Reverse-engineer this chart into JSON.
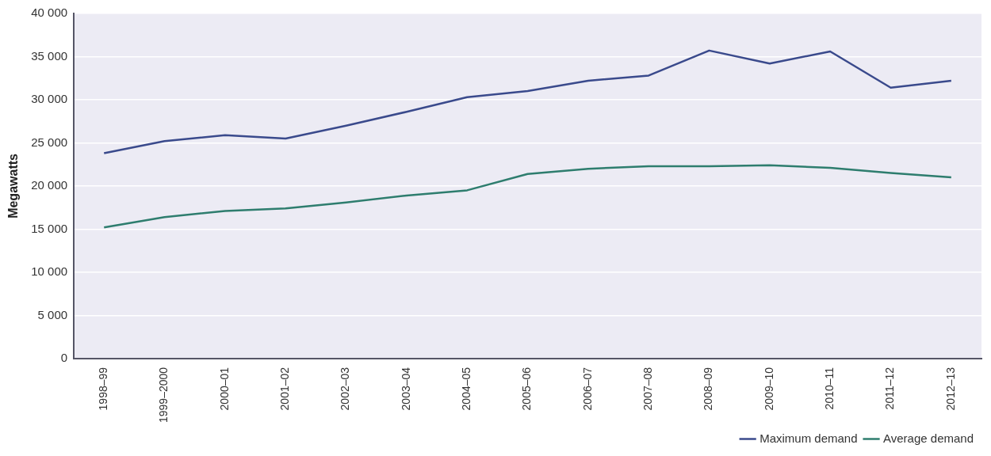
{
  "chart_data": {
    "type": "line",
    "ylabel": "Megawatts",
    "categories": [
      "1998–99",
      "1999–2000",
      "2000–01",
      "2001–02",
      "2002–03",
      "2003–04",
      "2004–05",
      "2005–06",
      "2006–07",
      "2007–08",
      "2008–09",
      "2009–10",
      "2010–11",
      "2011–12",
      "2012–13"
    ],
    "series": [
      {
        "name": "Maximum demand",
        "color": "#3a4a8c",
        "values": [
          23800,
          25200,
          25900,
          25500,
          27000,
          28600,
          30300,
          31000,
          32200,
          32800,
          35700,
          34200,
          35600,
          31400,
          32200
        ]
      },
      {
        "name": "Average demand",
        "color": "#2e7d6e",
        "values": [
          15200,
          16400,
          17100,
          17400,
          18100,
          18900,
          19500,
          21400,
          22000,
          22300,
          22300,
          22400,
          22100,
          21500,
          21000
        ]
      }
    ],
    "ylim": [
      0,
      40000
    ],
    "yticks": [
      {
        "value": 0,
        "label": "0"
      },
      {
        "value": 5000,
        "label": "5 000"
      },
      {
        "value": 10000,
        "label": "10 000"
      },
      {
        "value": 15000,
        "label": "15 000"
      },
      {
        "value": 20000,
        "label": "20 000"
      },
      {
        "value": 25000,
        "label": "25 000"
      },
      {
        "value": 30000,
        "label": "30 000"
      },
      {
        "value": 35000,
        "label": "35 000"
      },
      {
        "value": 40000,
        "label": "40 000"
      }
    ],
    "grid": "y",
    "legend": "bottom right",
    "marker": "none",
    "line_style": "solid"
  }
}
